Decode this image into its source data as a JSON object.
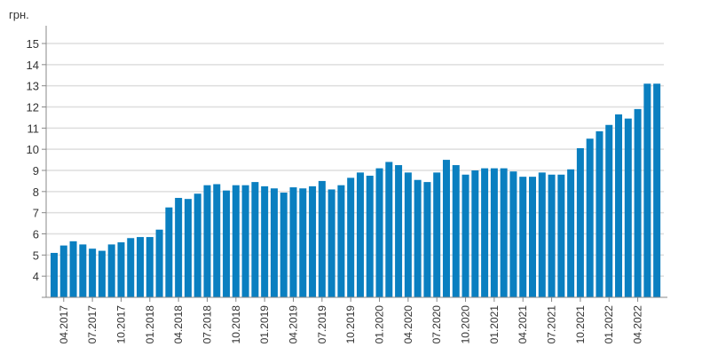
{
  "chart_data": {
    "type": "bar",
    "title": "",
    "ylabel": "грн.",
    "xlabel": "",
    "ylim": [
      3,
      15
    ],
    "yticks": [
      4,
      5,
      6,
      7,
      8,
      9,
      10,
      11,
      12,
      13,
      14,
      15
    ],
    "grid": true,
    "color": "#0a7fc0",
    "categories": [
      "03.2017",
      "04.2017",
      "05.2017",
      "06.2017",
      "07.2017",
      "08.2017",
      "09.2017",
      "10.2017",
      "11.2017",
      "12.2017",
      "01.2018",
      "02.2018",
      "03.2018",
      "04.2018",
      "05.2018",
      "06.2018",
      "07.2018",
      "08.2018",
      "09.2018",
      "10.2018",
      "11.2018",
      "12.2018",
      "01.2019",
      "02.2019",
      "03.2019",
      "04.2019",
      "05.2019",
      "06.2019",
      "07.2019",
      "08.2019",
      "09.2019",
      "10.2019",
      "11.2019",
      "12.2019",
      "01.2020",
      "02.2020",
      "03.2020",
      "04.2020",
      "05.2020",
      "06.2020",
      "07.2020",
      "08.2020",
      "09.2020",
      "10.2020",
      "11.2020",
      "12.2020",
      "01.2021",
      "02.2021",
      "03.2021",
      "04.2021",
      "05.2021",
      "06.2021",
      "07.2021",
      "08.2021",
      "09.2021",
      "10.2021",
      "11.2021",
      "12.2021",
      "01.2022",
      "02.2022",
      "03.2022",
      "04.2022",
      "05.2022",
      "06.2022"
    ],
    "values": [
      5.1,
      5.45,
      5.65,
      5.5,
      5.3,
      5.2,
      5.5,
      5.6,
      5.8,
      5.85,
      5.85,
      6.2,
      7.25,
      7.7,
      7.65,
      7.9,
      8.3,
      8.35,
      8.05,
      8.3,
      8.3,
      8.45,
      8.25,
      8.15,
      7.95,
      8.2,
      8.15,
      8.25,
      8.5,
      8.1,
      8.3,
      8.65,
      8.9,
      8.75,
      9.1,
      9.4,
      9.25,
      8.9,
      8.55,
      8.45,
      8.9,
      9.5,
      9.25,
      8.8,
      9.0,
      9.1,
      9.1,
      9.1,
      8.95,
      8.7,
      8.7,
      8.9,
      8.8,
      8.8,
      9.05,
      10.05,
      10.5,
      10.85,
      11.15,
      11.65,
      11.45,
      11.9,
      13.1,
      13.1
    ],
    "xtick_labels": [
      "04.2017",
      "07.2017",
      "10.2017",
      "01.2018",
      "04.2018",
      "07.2018",
      "10.2018",
      "01.2019",
      "04.2019",
      "07.2019",
      "10.2019",
      "01.2020",
      "04.2020",
      "07.2020",
      "10.2020",
      "01.2021",
      "04.2021",
      "07.2021",
      "10.2021",
      "01.2022",
      "04.2022"
    ]
  }
}
